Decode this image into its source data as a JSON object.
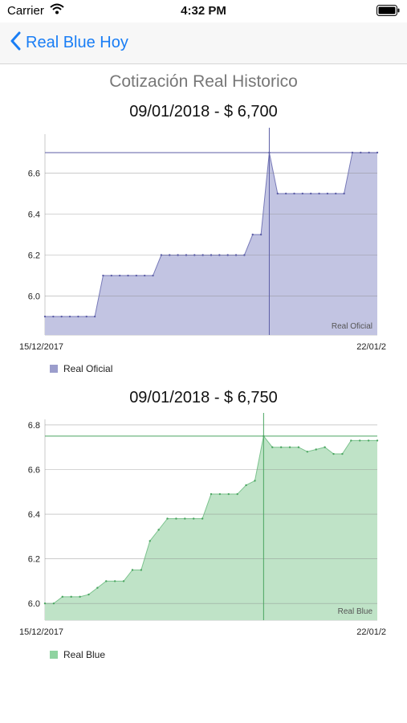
{
  "status_bar": {
    "carrier": "Carrier",
    "time": "4:32 PM"
  },
  "nav": {
    "back_label": "Real Blue Hoy"
  },
  "page_title": "Cotización Real Historico",
  "charts": [
    {
      "header": "09/01/2018 -  $ 6,700",
      "legend": "Real Oficial",
      "watermark": "Real Oficial",
      "x_start": "15/12/2017",
      "x_end": "22/01/2",
      "fill": "#c2c4e2",
      "line": "#7779b8",
      "marker": "#5c5ea6"
    },
    {
      "header": "09/01/2018 -  $ 6,750",
      "legend": "Real Blue",
      "watermark": "Real Blue",
      "x_start": "15/12/2017",
      "x_end": "22/01/2",
      "fill": "#bfe3c7",
      "line": "#7cc38e",
      "marker": "#4aa560"
    }
  ],
  "chart_data": [
    {
      "type": "area",
      "series": [
        {
          "name": "Real Oficial",
          "values": [
            5.9,
            5.9,
            5.9,
            5.9,
            5.9,
            5.9,
            5.9,
            6.1,
            6.1,
            6.1,
            6.1,
            6.1,
            6.1,
            6.1,
            6.2,
            6.2,
            6.2,
            6.2,
            6.2,
            6.2,
            6.2,
            6.2,
            6.2,
            6.2,
            6.2,
            6.3,
            6.3,
            6.7,
            6.5,
            6.5,
            6.5,
            6.5,
            6.5,
            6.5,
            6.5,
            6.5,
            6.5,
            6.7,
            6.7,
            6.7,
            6.7
          ]
        }
      ],
      "x_labels": [
        "15/12/2017",
        "22/01/2"
      ],
      "y_ticks": [
        6.0,
        6.2,
        6.4,
        6.6
      ],
      "ylim": [
        5.81,
        6.79
      ],
      "highlight": {
        "index": 27,
        "value": 6.7
      }
    },
    {
      "type": "area",
      "series": [
        {
          "name": "Real Blue",
          "values": [
            6.0,
            6.0,
            6.03,
            6.03,
            6.03,
            6.04,
            6.07,
            6.1,
            6.1,
            6.1,
            6.15,
            6.15,
            6.28,
            6.33,
            6.38,
            6.38,
            6.38,
            6.38,
            6.38,
            6.49,
            6.49,
            6.49,
            6.49,
            6.53,
            6.55,
            6.75,
            6.7,
            6.7,
            6.7,
            6.7,
            6.68,
            6.69,
            6.7,
            6.67,
            6.67,
            6.73,
            6.73,
            6.73,
            6.73
          ]
        }
      ],
      "x_labels": [
        "15/12/2017",
        "22/01/2"
      ],
      "y_ticks": [
        6.0,
        6.2,
        6.4,
        6.6,
        6.8
      ],
      "ylim": [
        5.925,
        6.825
      ],
      "highlight": {
        "index": 25,
        "value": 6.75
      }
    }
  ]
}
